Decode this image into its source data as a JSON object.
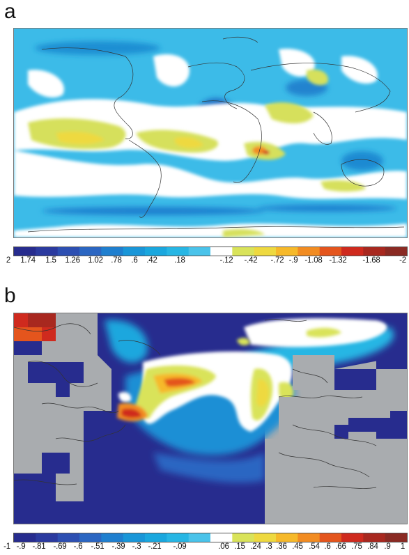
{
  "panels": [
    {
      "letter": "a",
      "colorbar": {
        "ticks": [
          "2",
          "1.74",
          "1.5",
          "1.26",
          "1.02",
          ".78",
          ".6",
          ".42",
          ".18",
          "-.12",
          "-.42",
          "-.72",
          "-.9",
          "-1.08",
          "-1.32",
          "-1.68",
          "-2"
        ],
        "colors": [
          "#272c8e",
          "#2b3a9f",
          "#2d4fb2",
          "#2b66c2",
          "#1f7fcf",
          "#1996d8",
          "#1aa7de",
          "#27b6e4",
          "#4ac3ea",
          "#ffffff",
          "#d9e35a",
          "#eed940",
          "#f6b92a",
          "#f28c22",
          "#e4551d",
          "#cf2a1e",
          "#a8281f",
          "#8a2a23"
        ]
      }
    },
    {
      "letter": "b",
      "colorbar": {
        "ticks": [
          "-1",
          "-.9",
          "-.81",
          "-.69",
          "-.6",
          "-.51",
          "-.39",
          "-.3",
          "-.21",
          "-.09",
          ".06",
          ".15",
          ".24",
          ".3",
          ".36",
          ".45",
          ".54",
          ".6",
          ".66",
          ".75",
          ".84",
          ".9",
          "1"
        ],
        "colors": [
          "#272c8e",
          "#2b3a9f",
          "#2d4fb2",
          "#2b66c2",
          "#1f7fcf",
          "#1996d8",
          "#1aa7de",
          "#27b6e4",
          "#4ac3ea",
          "#ffffff",
          "#d9e35a",
          "#eed940",
          "#f6b92a",
          "#f28c22",
          "#e4551d",
          "#cf2a1e",
          "#a8281f",
          "#8a2a23"
        ]
      }
    }
  ],
  "palette": {
    "ocean_mask_gray": "#a9acaf",
    "coastline": "#333333"
  }
}
